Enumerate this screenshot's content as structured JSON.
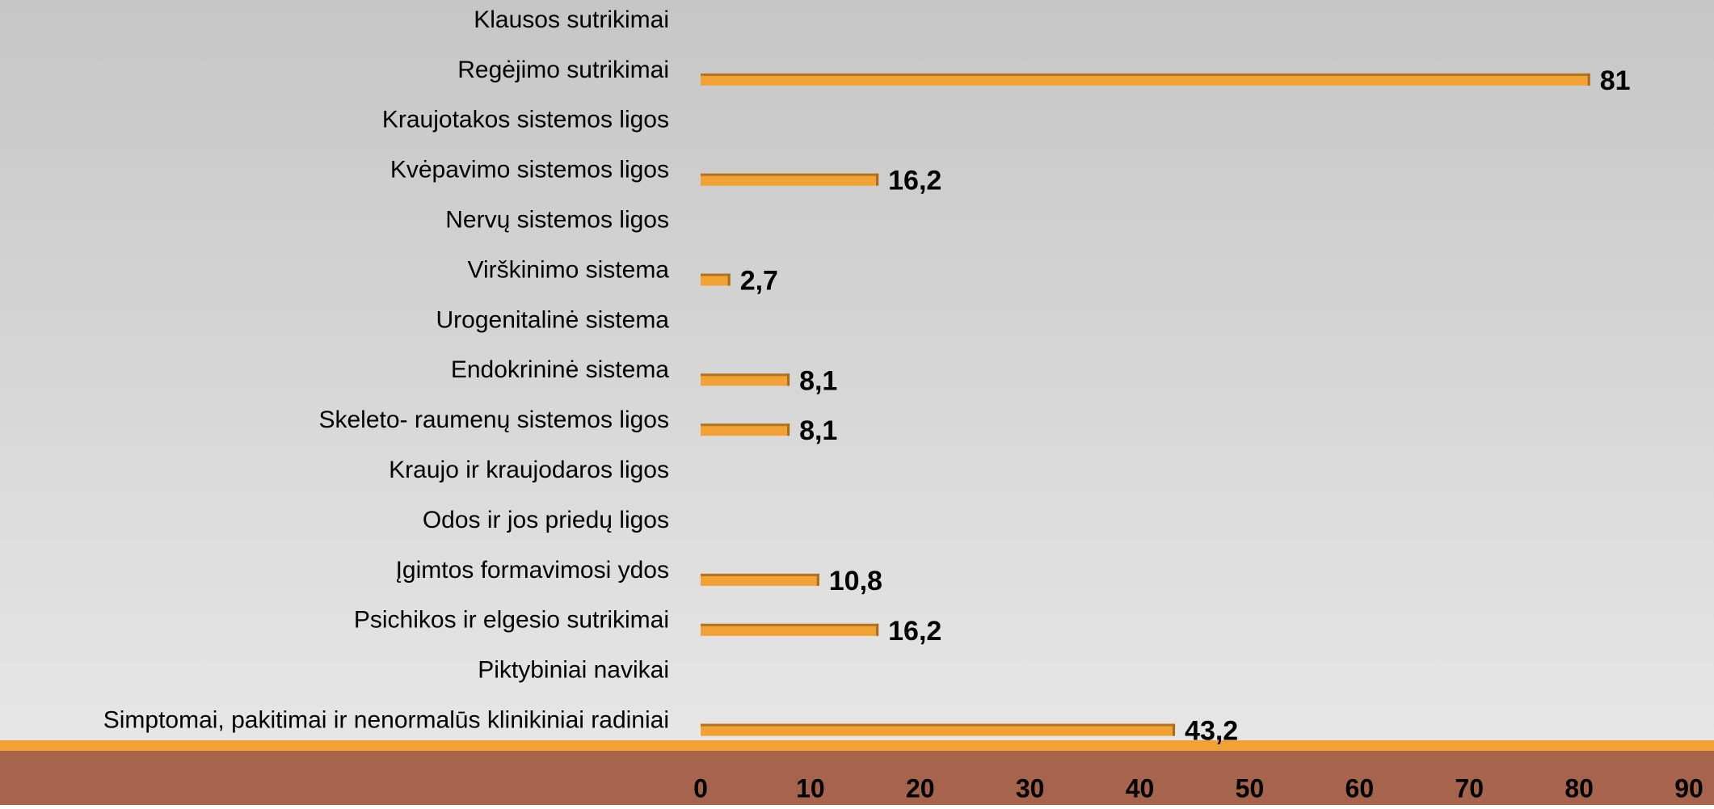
{
  "chart_data": {
    "type": "bar",
    "orientation": "horizontal",
    "categories": [
      "Klausos sutrikimai",
      "Regėjimo sutrikimai",
      "Kraujotakos sistemos ligos",
      "Kvėpavimo sistemos ligos",
      "Nervų sistemos ligos",
      "Virškinimo sistema",
      "Urogenitalinė sistema",
      "Endokrininė sistema",
      "Skeleto- raumenų sistemos ligos",
      "Kraujo ir kraujodaros ligos",
      "Odos ir jos priedų ligos",
      "Įgimtos formavimosi ydos",
      "Psichikos ir elgesio sutrikimai",
      "Piktybiniai navikai",
      "Simptomai, pakitimai ir nenormalūs klinikiniai radiniai"
    ],
    "values": [
      null,
      81,
      null,
      16.2,
      null,
      2.7,
      null,
      8.1,
      8.1,
      null,
      null,
      10.8,
      16.2,
      null,
      43.2
    ],
    "value_labels": [
      null,
      "81",
      null,
      "16,2",
      null,
      "2,7",
      null,
      "8,1",
      "8,1",
      null,
      null,
      "10,8",
      "16,2",
      null,
      "43,2"
    ],
    "color": "#f2a134",
    "xlim": [
      0,
      90
    ],
    "xticks": [
      0,
      10,
      20,
      30,
      40,
      50,
      60,
      70,
      80,
      90
    ]
  }
}
